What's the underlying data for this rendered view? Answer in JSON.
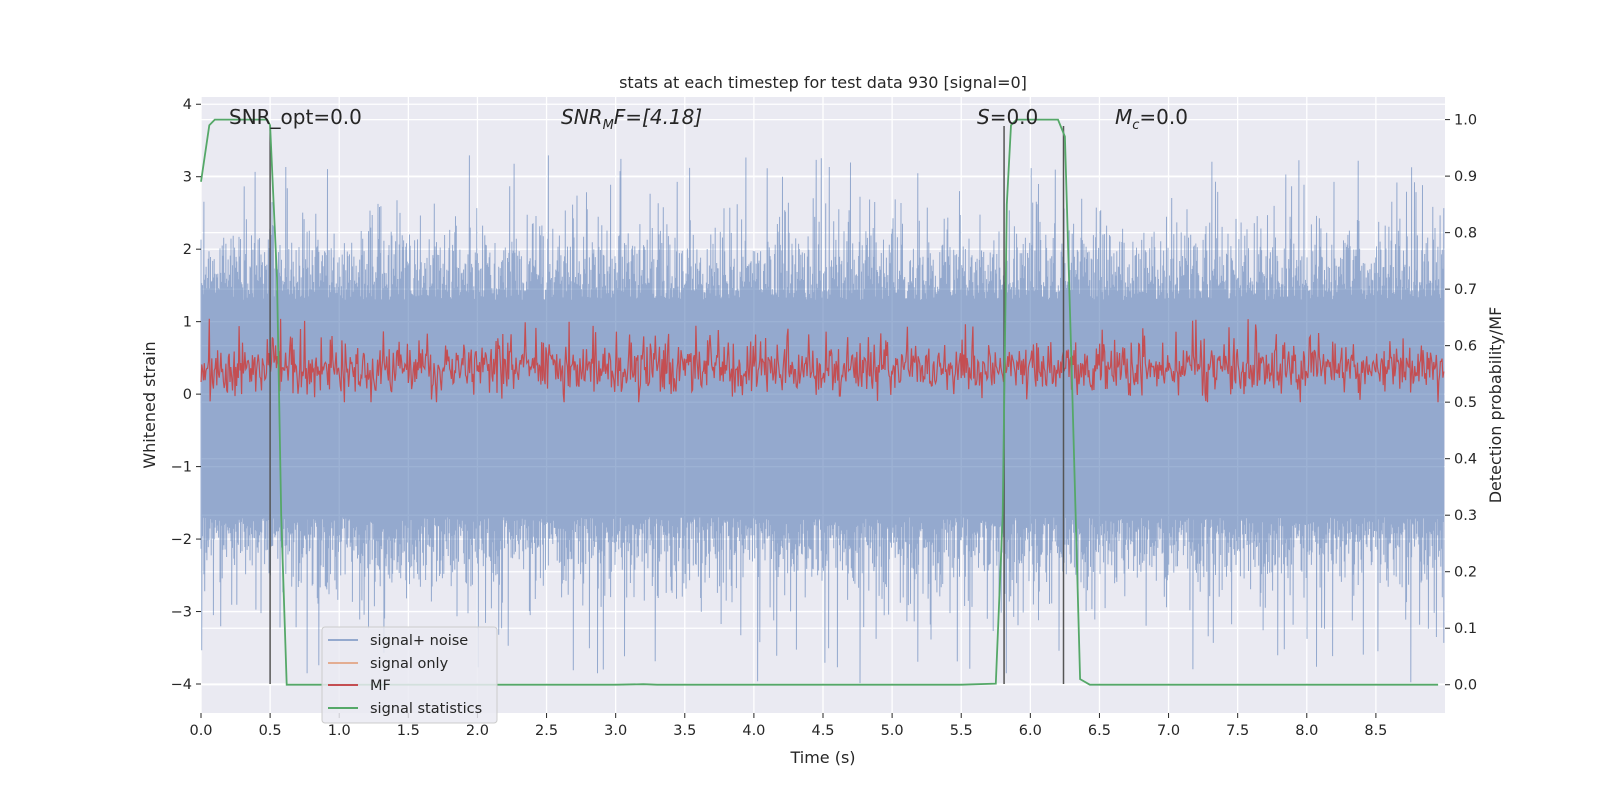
{
  "chart_data": {
    "type": "line",
    "title": "stats at each timestep for test data 930 [signal=0]",
    "xlabel": "Time (s)",
    "ylabel": "Whitened strain",
    "y2label": "Detection probability/MF",
    "xlim": [
      0.0,
      9.0
    ],
    "ylim": [
      -4.4,
      4.1
    ],
    "y2lim": [
      -0.05,
      1.04
    ],
    "x_ticks": [
      0.0,
      0.5,
      1.0,
      1.5,
      2.0,
      2.5,
      3.0,
      3.5,
      4.0,
      4.5,
      5.0,
      5.5,
      6.0,
      6.5,
      7.0,
      7.5,
      8.0,
      8.5
    ],
    "x_tick_labels": [
      "0.0",
      "0.5",
      "1.0",
      "1.5",
      "2.0",
      "2.5",
      "3.0",
      "3.5",
      "4.0",
      "4.5",
      "5.0",
      "5.5",
      "6.0",
      "6.5",
      "7.0",
      "7.5",
      "8.0",
      "8.5"
    ],
    "y_ticks": [
      -4,
      -3,
      -2,
      -1,
      0,
      1,
      2,
      3,
      4
    ],
    "y_tick_labels": [
      "−4",
      "−3",
      "−2",
      "−1",
      "0",
      "1",
      "2",
      "3",
      "4"
    ],
    "y2_ticks": [
      0.0,
      0.1,
      0.2,
      0.3,
      0.4,
      0.5,
      0.6,
      0.7,
      0.8,
      0.9,
      1.0
    ],
    "y2_tick_labels": [
      "0.0",
      "0.1",
      "0.2",
      "0.3",
      "0.4",
      "0.5",
      "0.6",
      "0.7",
      "0.8",
      "0.9",
      "1.0"
    ],
    "grid": true,
    "legend_position": "lower-left",
    "annotations": {
      "snr_opt": "SNR_opt=0.0",
      "snr_mf_name": "SNR",
      "snr_mf_sub": "M",
      "snr_mf_rest": "F=[4.18]",
      "s_name": "S",
      "s_rest": "=0.0",
      "mc_name": "M",
      "mc_sub": "c",
      "mc_rest": "=0.0"
    },
    "series": [
      {
        "name": "signal+ noise",
        "color": "#4c72b0",
        "axis": "left",
        "style": "noise band",
        "typical_range": [
          -1.7,
          1.3
        ],
        "peak_range": [
          -4.0,
          3.3
        ]
      },
      {
        "name": "signal only",
        "color": "#dd8452",
        "axis": "left",
        "x": [],
        "y": []
      },
      {
        "name": "MF",
        "color": "#c44e52",
        "axis": "right",
        "style": "noise band",
        "typical_range": [
          0.52,
          0.6
        ],
        "peak_range": [
          0.5,
          0.65
        ]
      },
      {
        "name": "signal statistics",
        "color": "#55a868",
        "axis": "right",
        "x": [
          0.0,
          0.06,
          0.1,
          0.3,
          0.48,
          0.5,
          0.55,
          0.58,
          0.62,
          0.65,
          1.0,
          2.0,
          3.0,
          3.2,
          3.3,
          4.0,
          5.0,
          5.5,
          5.75,
          5.8,
          5.83,
          5.86,
          5.9,
          6.2,
          6.25,
          6.3,
          6.36,
          6.43,
          7.0,
          8.0,
          8.95
        ],
        "y": [
          0.89,
          0.99,
          1.0,
          1.0,
          1.0,
          0.99,
          0.72,
          0.3,
          0.0,
          0.0,
          0.0,
          0.0,
          0.0,
          0.001,
          0.0,
          0.0,
          0.0,
          0.0,
          0.002,
          0.3,
          0.85,
          0.99,
          1.0,
          1.0,
          0.97,
          0.55,
          0.01,
          0.0,
          0.0,
          0.0,
          0.0
        ]
      }
    ],
    "vertical_markers": [
      {
        "x": 0.5,
        "ymin": -4.0,
        "ymax": 3.7,
        "color": "#555555"
      },
      {
        "x": 5.81,
        "ymin": -4.0,
        "ymax": 3.7,
        "color": "#555555"
      },
      {
        "x": 6.24,
        "ymin": -4.0,
        "ymax": 3.7,
        "color": "#555555"
      }
    ]
  }
}
